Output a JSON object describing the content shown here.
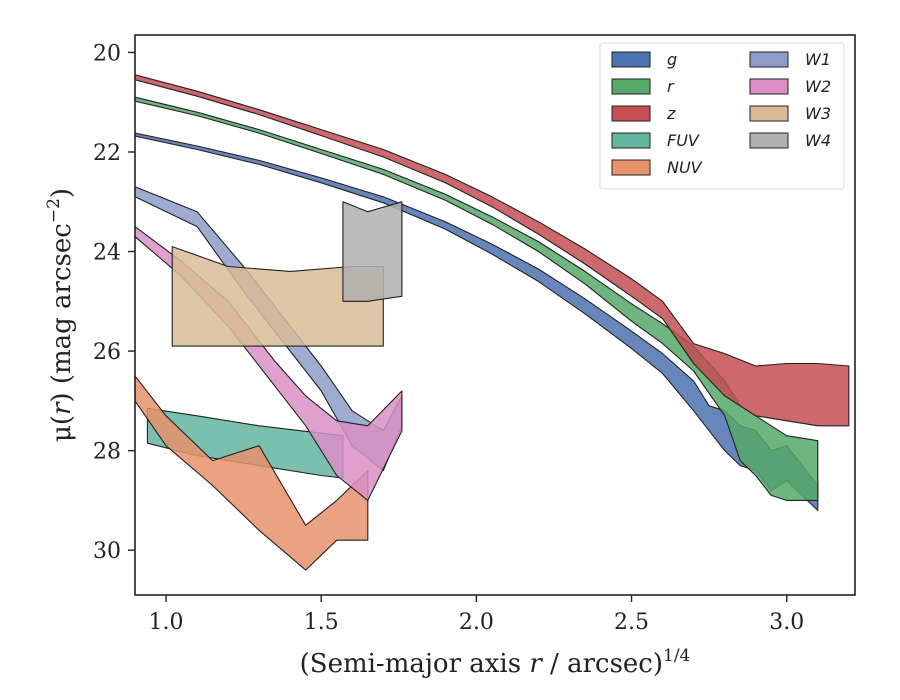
{
  "chart_data": {
    "type": "area",
    "xlabel": {
      "main": "(Semi-major axis ",
      "var": "r",
      "mid": " / arcsec)",
      "sup": "1/4"
    },
    "ylabel": {
      "pre": "μ(",
      "var": "r",
      "mid": ") (mag arcsec",
      "sup": "−2",
      "post": ")"
    },
    "xlim": [
      0.9,
      3.22
    ],
    "ylim": [
      30.9,
      19.65
    ],
    "y_inverted": true,
    "grid": false,
    "legend_position": "top-right",
    "x_ticks": [
      1.0,
      1.5,
      2.0,
      2.5,
      3.0
    ],
    "x_tick_labels": [
      "1.0",
      "1.5",
      "2.0",
      "2.5",
      "3.0"
    ],
    "y_ticks": [
      20,
      22,
      24,
      26,
      28,
      30
    ],
    "y_tick_labels": [
      "20",
      "22",
      "24",
      "26",
      "28",
      "30"
    ],
    "series": [
      {
        "name": "g",
        "color": "#4c72b0",
        "x": [
          0.9,
          1.1,
          1.3,
          1.5,
          1.7,
          1.9,
          2.05,
          2.2,
          2.35,
          2.5,
          2.6,
          2.7,
          2.75,
          2.8,
          2.85,
          2.9,
          2.95,
          3.0,
          3.1
        ],
        "lo": [
          21.62,
          21.88,
          22.17,
          22.52,
          22.9,
          23.4,
          23.85,
          24.35,
          24.95,
          25.6,
          26.05,
          26.6,
          27.1,
          27.2,
          27.5,
          27.6,
          28.0,
          27.9,
          28.7
        ],
        "hi": [
          21.68,
          21.95,
          22.25,
          22.62,
          23.02,
          23.55,
          24.05,
          24.6,
          25.25,
          25.95,
          26.45,
          27.2,
          27.6,
          28.0,
          28.3,
          28.4,
          28.8,
          28.6,
          29.2
        ]
      },
      {
        "name": "r",
        "color": "#55a868",
        "x": [
          0.9,
          1.1,
          1.3,
          1.5,
          1.7,
          1.9,
          2.05,
          2.2,
          2.35,
          2.5,
          2.6,
          2.7,
          2.8,
          2.85,
          2.9,
          2.95,
          3.0,
          3.1
        ],
        "lo": [
          20.9,
          21.2,
          21.55,
          21.95,
          22.35,
          22.85,
          23.3,
          23.8,
          24.4,
          25.05,
          25.45,
          25.9,
          26.6,
          27.1,
          27.3,
          27.5,
          27.7,
          27.8
        ],
        "hi": [
          20.98,
          21.27,
          21.62,
          22.03,
          22.45,
          22.97,
          23.45,
          24.0,
          24.65,
          25.4,
          25.85,
          26.4,
          27.3,
          28.2,
          28.5,
          28.9,
          29.0,
          29.0
        ]
      },
      {
        "name": "z",
        "color": "#c44e52",
        "x": [
          0.9,
          1.1,
          1.3,
          1.5,
          1.7,
          1.9,
          2.05,
          2.2,
          2.35,
          2.5,
          2.6,
          2.7,
          2.8,
          2.9,
          3.0,
          3.1,
          3.2
        ],
        "lo": [
          20.45,
          20.78,
          21.15,
          21.55,
          21.95,
          22.45,
          22.9,
          23.4,
          23.95,
          24.55,
          25.0,
          25.85,
          26.05,
          26.3,
          26.25,
          26.25,
          26.3
        ],
        "hi": [
          20.55,
          20.88,
          21.25,
          21.67,
          22.1,
          22.62,
          23.1,
          23.65,
          24.25,
          24.9,
          25.35,
          26.25,
          26.9,
          27.3,
          27.4,
          27.5,
          27.5
        ]
      },
      {
        "name": "FUV",
        "color": "#64b5a0",
        "x": [
          0.94,
          1.1,
          1.3,
          1.5,
          1.57
        ],
        "lo": [
          27.15,
          27.3,
          27.5,
          27.65,
          27.7
        ],
        "hi": [
          27.85,
          28.1,
          28.3,
          28.5,
          28.55
        ]
      },
      {
        "name": "NUV",
        "color": "#e8926a",
        "x": [
          0.9,
          1.0,
          1.15,
          1.3,
          1.45,
          1.55,
          1.65
        ],
        "lo": [
          26.5,
          27.3,
          28.2,
          27.9,
          29.5,
          29.0,
          28.4
        ],
        "hi": [
          27.0,
          27.9,
          28.7,
          29.6,
          30.4,
          29.8,
          29.8
        ]
      },
      {
        "name": "W1",
        "color": "#8c9ec8",
        "x": [
          0.9,
          1.1,
          1.25,
          1.4,
          1.5,
          1.6,
          1.7,
          1.76
        ],
        "lo": [
          22.7,
          23.2,
          24.3,
          25.5,
          26.3,
          27.2,
          27.6,
          26.9
        ],
        "hi": [
          22.9,
          23.5,
          24.8,
          26.0,
          26.8,
          27.9,
          28.4,
          27.5
        ]
      },
      {
        "name": "W2",
        "color": "#d98fc6",
        "x": [
          0.9,
          1.05,
          1.2,
          1.35,
          1.45,
          1.55,
          1.65,
          1.76
        ],
        "lo": [
          23.5,
          24.2,
          25.0,
          26.2,
          26.9,
          27.4,
          27.5,
          26.8
        ],
        "hi": [
          23.7,
          24.5,
          25.5,
          26.7,
          27.5,
          28.5,
          29.0,
          27.6
        ]
      },
      {
        "name": "W3",
        "color": "#d9bc96",
        "x": [
          1.02,
          1.2,
          1.4,
          1.6,
          1.7
        ],
        "lo": [
          23.9,
          24.3,
          24.4,
          24.3,
          24.3
        ],
        "hi": [
          25.9,
          25.9,
          25.9,
          25.9,
          25.9
        ]
      },
      {
        "name": "W4",
        "color": "#b0b0b0",
        "x": [
          1.57,
          1.65,
          1.76
        ],
        "lo": [
          23.0,
          23.2,
          23.0
        ],
        "hi": [
          25.0,
          25.0,
          24.9
        ]
      }
    ]
  },
  "legend": [
    {
      "label": "g",
      "color": "#4c72b0"
    },
    {
      "label": "r",
      "color": "#55a868"
    },
    {
      "label": "z",
      "color": "#c44e52"
    },
    {
      "label": "FUV",
      "color": "#64b5a0"
    },
    {
      "label": "NUV",
      "color": "#e8926a"
    },
    {
      "label": "W1",
      "color": "#8c9ec8"
    },
    {
      "label": "W2",
      "color": "#d98fc6"
    },
    {
      "label": "W3",
      "color": "#d9bc96"
    },
    {
      "label": "W4",
      "color": "#b0b0b0"
    }
  ]
}
